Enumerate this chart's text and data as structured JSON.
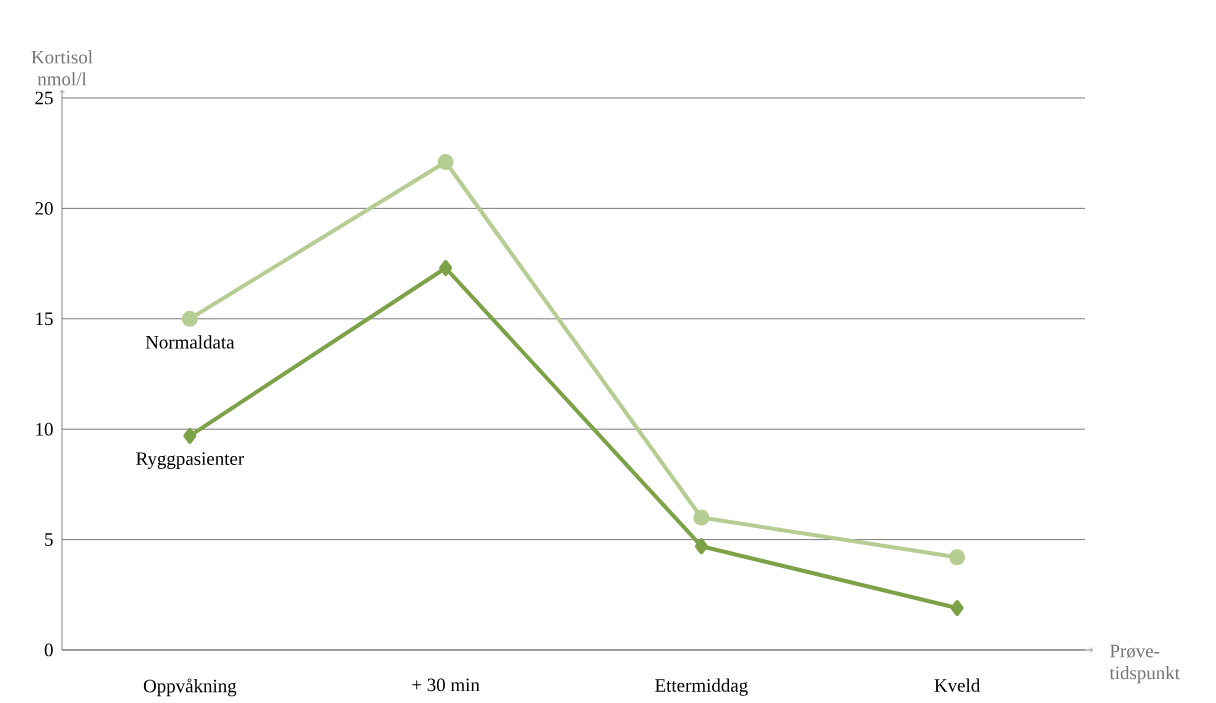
{
  "chart_data": {
    "type": "line",
    "xlabel": "Prøve-tidspunkt",
    "ylabel": "Kortisol nmol/l",
    "categories": [
      "Oppvåkning",
      "+ 30 min",
      "Ettermiddag",
      "Kveld"
    ],
    "series": [
      {
        "name": "Normaldata",
        "color": "#b5cc92",
        "marker": "circle",
        "values": [
          15,
          22.1,
          6,
          4.2
        ]
      },
      {
        "name": "Ryggpasienter",
        "color": "#7ca147",
        "marker": "diamond",
        "values": [
          9.7,
          17.3,
          4.7,
          1.9
        ]
      }
    ],
    "ylim": [
      0,
      25
    ],
    "yticks": [
      0,
      5,
      10,
      15,
      20,
      25
    ],
    "grid": "y",
    "legend": false,
    "line_style": "solid"
  }
}
